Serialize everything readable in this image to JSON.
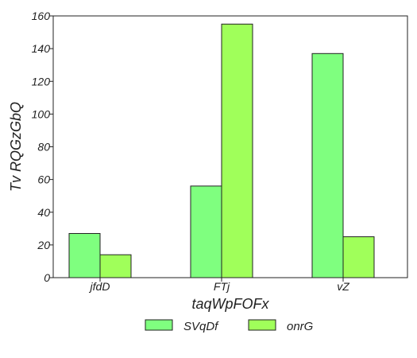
{
  "chart_data": {
    "type": "bar",
    "title": "",
    "xlabel": "taqWpFOFx",
    "ylabel": "Tv RQGzGbQ",
    "categories": [
      "jfdD",
      "FTj",
      "vZ"
    ],
    "series": [
      {
        "name": "SVqDf",
        "values": [
          27,
          56,
          137
        ],
        "color": "#7fff7f"
      },
      {
        "name": "onrG",
        "values": [
          14,
          155,
          25
        ],
        "color": "#a0ff5a"
      }
    ],
    "ylim": [
      0,
      160
    ],
    "yticks": [
      "0",
      "20",
      "40",
      "60",
      "80",
      "100",
      "120",
      "140",
      "160"
    ],
    "grid": false,
    "legend_position": "bottom"
  }
}
